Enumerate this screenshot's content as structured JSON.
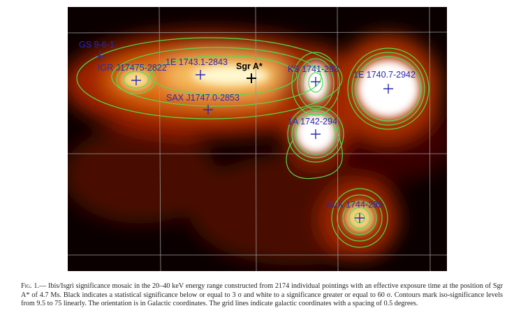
{
  "figure": {
    "sources": [
      {
        "label": "GS 9-6-1"
      },
      {
        "label": "IGR J17475-2822"
      },
      {
        "label": "1E 1743.1-2843"
      },
      {
        "label": "Sgr A*"
      },
      {
        "label": "KS 1741-293"
      },
      {
        "label": "1E 1740.7-2942"
      },
      {
        "label": "SAX J1747.0-2853"
      },
      {
        "label": "1A 1742-294"
      },
      {
        "label": "SLX 1744-299"
      }
    ]
  },
  "caption": {
    "label": "Fig. 1.—",
    "text": "Ibis/Isgri significance mosaic in the 20–40 keV energy range constructed from 2174 individual pointings with an effective exposure time at the position of Sgr A* of 4.7 Ms. Black indicates a statistical significance below or equal to 3 σ and white to a significance greater or equal to 60 σ. Contours mark iso-significance levels from 9.5 to 75 linearly. The orientation is in Galactic coordinates. The grid lines indicate galactic coordinates with a spacing of 0.5 degrees."
  }
}
